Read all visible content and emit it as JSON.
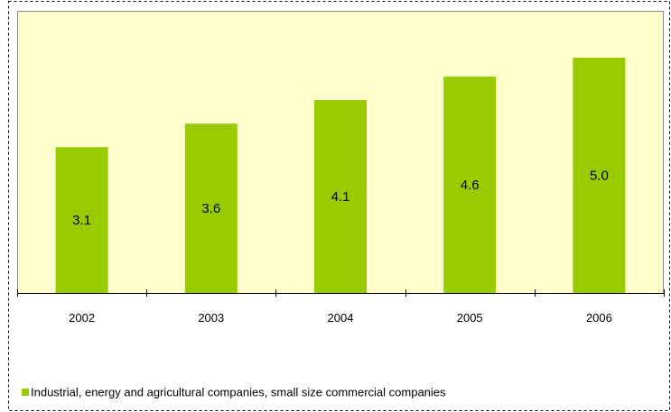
{
  "chart_data": {
    "type": "bar",
    "categories": [
      "2002",
      "2003",
      "2004",
      "2005",
      "2006"
    ],
    "series": [
      {
        "name": "Industrial, energy and agricultural companies,  small size commercial companies",
        "values": [
          3.1,
          3.6,
          4.1,
          4.6,
          5.0
        ],
        "labels": [
          "3.1",
          "3.6",
          "4.1",
          "4.6",
          "5.0"
        ],
        "color": "#99cc00"
      }
    ],
    "ylim": [
      0,
      5.0
    ],
    "grid": false,
    "legend_position": "bottom-left",
    "colors": {
      "plot_background": "#ffffcc",
      "bar": "#99cc00"
    }
  }
}
